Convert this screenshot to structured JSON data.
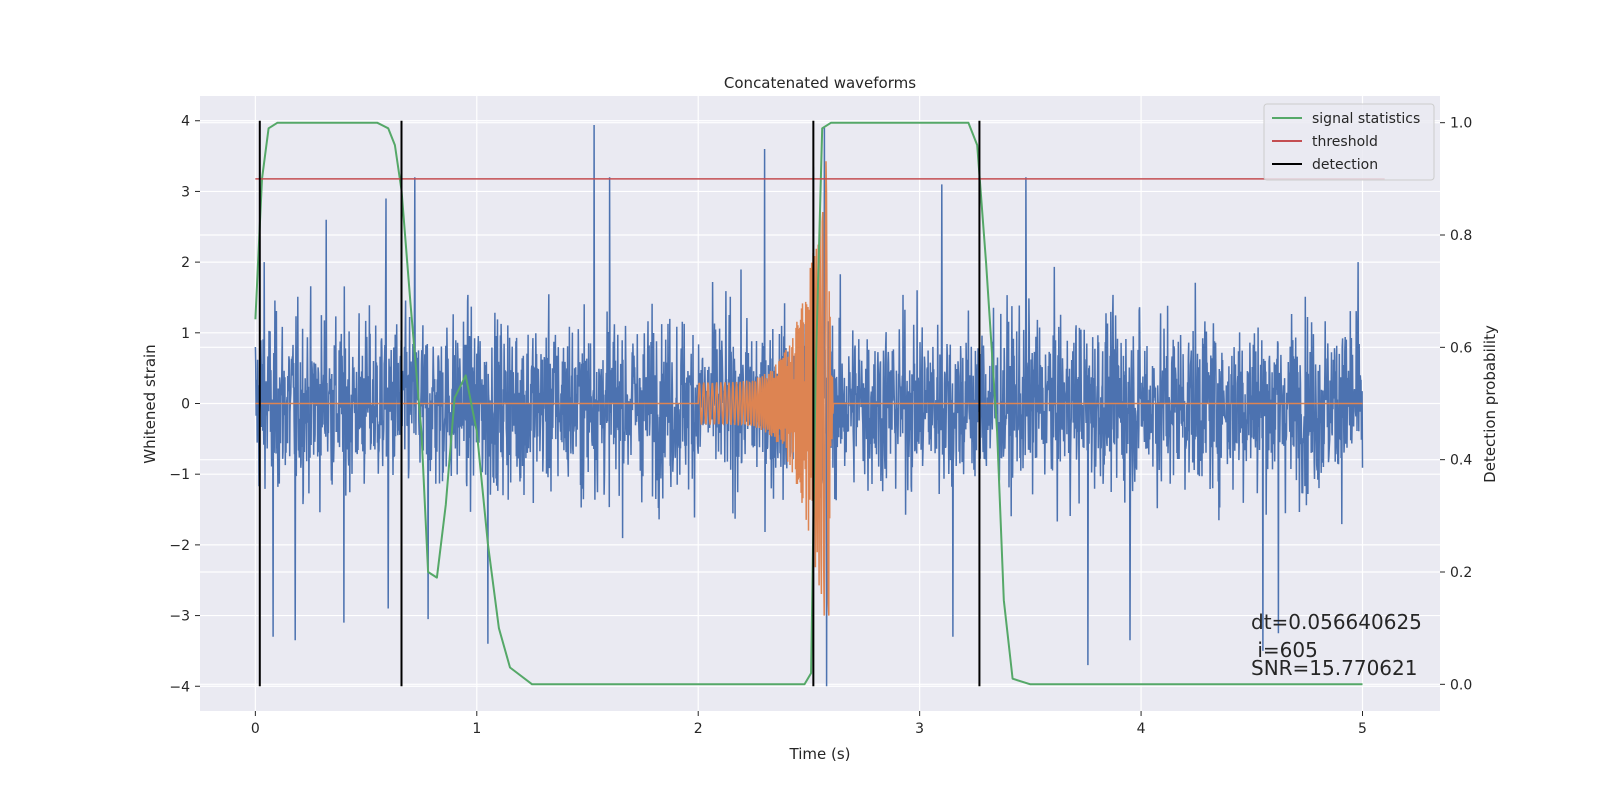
{
  "chart_data": {
    "type": "line",
    "title": "Concatenated waveforms",
    "xlabel": "Time (s)",
    "ylabel": "Whitened strain",
    "ylabel_right": "Detection probability",
    "xlim": [
      -0.25,
      5.35
    ],
    "ylim": [
      -4.35,
      4.35
    ],
    "ylim_right": [
      -0.0475,
      1.0475
    ],
    "x_ticks": [
      0,
      1,
      2,
      3,
      4,
      5
    ],
    "y_ticks": [
      4,
      3,
      2,
      1,
      0,
      -1,
      -2,
      -3,
      -4
    ],
    "y_tick_labels": [
      "4",
      "3",
      "2",
      "1",
      "0",
      "−1",
      "−2",
      "−3",
      "−4"
    ],
    "y_right_ticks": [
      1.0,
      0.8,
      0.6,
      0.4,
      0.2,
      0.0
    ],
    "y_right_tick_labels": [
      "1.0",
      "0.8",
      "0.6",
      "0.4",
      "0.2",
      "0.0"
    ],
    "grid": true,
    "legend_position": "top-right",
    "background": "#eaeaf2",
    "colors": {
      "strain": "#4c72b0",
      "waveform": "#dd8452",
      "signal_statistics": "#55a868",
      "threshold": "#c44e52",
      "detection": "#000000"
    },
    "series": [
      {
        "name": "signal statistics",
        "axis": "right",
        "x": [
          0.0,
          0.03,
          0.06,
          0.1,
          0.3,
          0.55,
          0.6,
          0.63,
          0.66,
          0.7,
          0.75,
          0.78,
          0.82,
          0.86,
          0.9,
          0.95,
          1.0,
          1.05,
          1.1,
          1.15,
          1.25,
          1.5,
          1.6,
          2.0,
          2.4,
          2.48,
          2.51,
          2.53,
          2.56,
          2.6,
          3.1,
          3.22,
          3.26,
          3.3,
          3.35,
          3.38,
          3.42,
          3.5,
          4.0,
          4.5,
          5.0
        ],
        "y": [
          0.65,
          0.9,
          0.99,
          1.0,
          1.0,
          1.0,
          0.99,
          0.96,
          0.88,
          0.68,
          0.45,
          0.2,
          0.19,
          0.32,
          0.51,
          0.55,
          0.45,
          0.25,
          0.1,
          0.03,
          0.0,
          0.0,
          0.0,
          0.0,
          0.0,
          0.0,
          0.02,
          0.55,
          0.99,
          1.0,
          1.0,
          1.0,
          0.96,
          0.75,
          0.45,
          0.15,
          0.01,
          0.0,
          0.0,
          0.0,
          0.0
        ]
      },
      {
        "name": "threshold",
        "axis": "right",
        "x": [
          0.0,
          5.1
        ],
        "y": [
          0.9,
          0.9
        ]
      },
      {
        "name": "detection",
        "axis": "left",
        "vlines": [
          0.02,
          0.66,
          2.52,
          3.27
        ],
        "ymin": -4,
        "ymax": 4
      },
      {
        "axis": "left",
        "kind": "noise",
        "x_range": [
          0.0,
          5.0
        ],
        "typical_amplitude": 1.5,
        "peak_max": 3.94,
        "peak_min": -4.0,
        "spikes": [
          [
            0.04,
            2.0
          ],
          [
            0.08,
            -3.3
          ],
          [
            0.18,
            -3.35
          ],
          [
            0.32,
            2.6
          ],
          [
            0.4,
            -3.1
          ],
          [
            0.59,
            2.9
          ],
          [
            0.6,
            -2.9
          ],
          [
            0.72,
            3.2
          ],
          [
            0.78,
            -3.05
          ],
          [
            1.05,
            -3.4
          ],
          [
            1.53,
            3.94
          ],
          [
            1.6,
            3.2
          ],
          [
            2.3,
            3.6
          ],
          [
            2.52,
            3.35
          ],
          [
            2.57,
            3.9
          ],
          [
            2.58,
            -4.0
          ],
          [
            3.1,
            3.1
          ],
          [
            3.15,
            -3.3
          ],
          [
            3.48,
            3.2
          ],
          [
            3.76,
            -3.7
          ],
          [
            3.95,
            -3.35
          ],
          [
            4.55,
            -3.5
          ],
          [
            4.62,
            -3.25
          ],
          [
            4.98,
            2.0
          ]
        ]
      },
      {
        "axis": "left",
        "kind": "chirp",
        "start": 2.0,
        "end": 2.59,
        "amplitude_start": 0.3,
        "amplitude_peak": 3.8,
        "amplitude_min": -3.0
      }
    ],
    "legend": [
      "signal statistics",
      "threshold",
      "detection"
    ],
    "annotations": [
      "dt=0.056640625",
      " i=605",
      "SNR=15.770621"
    ]
  }
}
